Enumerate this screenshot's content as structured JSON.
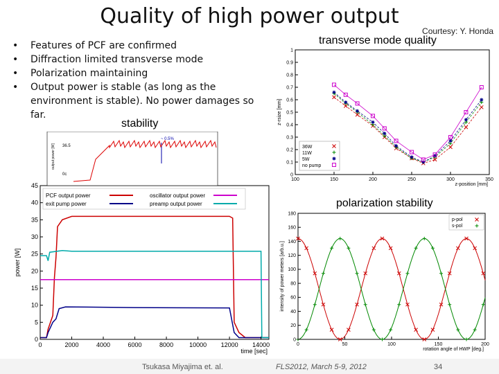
{
  "slide": {
    "title": "Quality of high power output",
    "courtesy": "Courtesy: Y. Honda",
    "transverse_heading": "transverse mode quality",
    "stability_heading": "stability",
    "polarization_heading": "polarization stability",
    "bullets": [
      "Features of PCF are confirmed",
      "Diffraction limited transverse mode",
      "Polarization maintaining",
      "Output power is stable (as long as the environment is stable). No power damages so far."
    ],
    "footer": {
      "author": "Tsukasa Miyajima et. al.",
      "event": "FLS2012, March 5-9, 2012",
      "page": "34"
    }
  },
  "chart_data": [
    {
      "type": "scatter",
      "ylabel": "z-rsize [mm]",
      "xlabel": "z-position [mm]",
      "xlim": [
        100,
        350
      ],
      "ylim": [
        0,
        1
      ],
      "x_ticks": [
        "100",
        "150",
        "200",
        "250",
        "300",
        "350"
      ],
      "y_ticks": [
        "0",
        "0.1",
        "0.2",
        "0.3",
        "0.4",
        "0.5",
        "0.6",
        "0.7",
        "0.8",
        "0.9",
        "1"
      ],
      "legend_position": "bottom-left",
      "series": [
        {
          "name": "36W",
          "color": "#cc0000",
          "marker": "x",
          "points": [
            [
              150,
              0.62
            ],
            [
              165,
              0.55
            ],
            [
              180,
              0.48
            ],
            [
              200,
              0.39
            ],
            [
              215,
              0.3
            ],
            [
              230,
              0.21
            ],
            [
              250,
              0.13
            ],
            [
              265,
              0.09
            ],
            [
              280,
              0.12
            ],
            [
              300,
              0.22
            ],
            [
              320,
              0.38
            ],
            [
              340,
              0.54
            ]
          ]
        },
        {
          "name": "11W",
          "color": "#008800",
          "marker": "+",
          "points": [
            [
              150,
              0.65
            ],
            [
              165,
              0.57
            ],
            [
              180,
              0.5
            ],
            [
              200,
              0.4
            ],
            [
              215,
              0.31
            ],
            [
              230,
              0.22
            ],
            [
              250,
              0.13
            ],
            [
              265,
              0.1
            ],
            [
              280,
              0.14
            ],
            [
              300,
              0.25
            ],
            [
              320,
              0.42
            ],
            [
              340,
              0.58
            ]
          ]
        },
        {
          "name": "5W",
          "color": "#000088",
          "marker": "*",
          "points": [
            [
              150,
              0.66
            ],
            [
              165,
              0.58
            ],
            [
              180,
              0.51
            ],
            [
              200,
              0.42
            ],
            [
              215,
              0.33
            ],
            [
              230,
              0.23
            ],
            [
              250,
              0.14
            ],
            [
              265,
              0.1
            ],
            [
              280,
              0.15
            ],
            [
              300,
              0.27
            ],
            [
              320,
              0.44
            ],
            [
              340,
              0.6
            ]
          ]
        },
        {
          "name": "no pump",
          "color": "#cc00cc",
          "marker": "square",
          "points": [
            [
              150,
              0.72
            ],
            [
              165,
              0.64
            ],
            [
              180,
              0.57
            ],
            [
              200,
              0.47
            ],
            [
              215,
              0.37
            ],
            [
              230,
              0.27
            ],
            [
              250,
              0.18
            ],
            [
              265,
              0.12
            ],
            [
              280,
              0.16
            ],
            [
              300,
              0.3
            ],
            [
              320,
              0.5
            ],
            [
              340,
              0.7
            ]
          ]
        }
      ]
    },
    {
      "type": "line",
      "ylabel": "power [W]",
      "xlabel": "time [sec]",
      "xlim": [
        0,
        14500
      ],
      "ylim": [
        0,
        45
      ],
      "x_ticks": [
        "0",
        "2000",
        "4000",
        "6000",
        "8000",
        "10000",
        "12000",
        "14000"
      ],
      "y_ticks": [
        "0",
        "5",
        "10",
        "15",
        "20",
        "25",
        "30",
        "35",
        "40",
        "45"
      ],
      "legend_position": "top",
      "series": [
        {
          "name": "PCF output power",
          "color": "#cc0000",
          "points": [
            [
              0,
              0.5
            ],
            [
              400,
              0.5
            ],
            [
              500,
              3
            ],
            [
              800,
              7
            ],
            [
              900,
              18
            ],
            [
              1000,
              24
            ],
            [
              1100,
              33
            ],
            [
              1400,
              35
            ],
            [
              2000,
              36
            ],
            [
              6000,
              36
            ],
            [
              12000,
              36
            ],
            [
              12200,
              35.5
            ],
            [
              12300,
              5
            ],
            [
              12600,
              2
            ],
            [
              13000,
              0.5
            ],
            [
              14500,
              0.5
            ]
          ]
        },
        {
          "name": "exit pump power",
          "color": "#000088",
          "points": [
            [
              0,
              0.5
            ],
            [
              400,
              0.5
            ],
            [
              500,
              2
            ],
            [
              800,
              5
            ],
            [
              1000,
              6
            ],
            [
              1200,
              9
            ],
            [
              1600,
              9.5
            ],
            [
              6000,
              9.3
            ],
            [
              12000,
              9.2
            ],
            [
              12300,
              2
            ],
            [
              12600,
              0.5
            ],
            [
              14500,
              0.5
            ]
          ]
        },
        {
          "name": "oscillator output power",
          "color": "#cc00cc",
          "points": [
            [
              0,
              17.5
            ],
            [
              14500,
              17.5
            ]
          ]
        },
        {
          "name": "preamp output power",
          "color": "#00aaaa",
          "points": [
            [
              0,
              24.5
            ],
            [
              400,
              24.5
            ],
            [
              500,
              23
            ],
            [
              600,
              25.5
            ],
            [
              1400,
              26
            ],
            [
              2000,
              25.8
            ],
            [
              14000,
              25.8
            ],
            [
              14050,
              0.5
            ],
            [
              14500,
              0.5
            ]
          ]
        }
      ],
      "inset": {
        "ylabel": "output power [W]",
        "tick_top": "36.5",
        "tick_bottom": "0c",
        "annotation": "~ 0.5%"
      }
    },
    {
      "type": "line",
      "ylabel": "intensity of power meters [arb.u.]",
      "xlabel": "rotation angle of HWP [deg.]",
      "xlim": [
        0,
        200
      ],
      "ylim": [
        0,
        180
      ],
      "x_ticks": [
        "0",
        "50",
        "100",
        "150",
        "200"
      ],
      "y_ticks": [
        "0",
        "20",
        "40",
        "60",
        "80",
        "100",
        "120",
        "140",
        "160",
        "180"
      ],
      "legend_position": "top-right",
      "series": [
        {
          "name": "p-pol",
          "color": "#cc0000",
          "marker": "x",
          "period": 90,
          "phase": 0,
          "amplitude": 72,
          "offset": 72
        },
        {
          "name": "s-pol",
          "color": "#008800",
          "marker": "+",
          "period": 90,
          "phase": 45,
          "amplitude": 72,
          "offset": 72
        }
      ]
    }
  ]
}
